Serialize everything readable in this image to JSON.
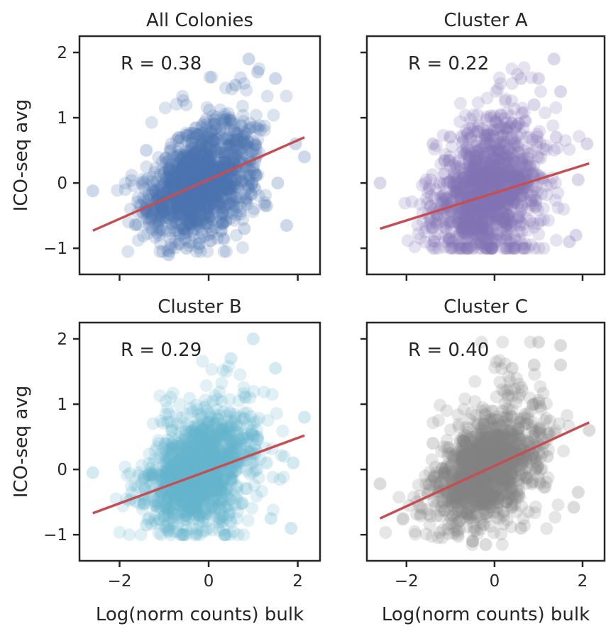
{
  "figure": {
    "colors": {
      "fit_line": "#c44e52",
      "axes": "#262626",
      "background": "#ffffff"
    }
  },
  "chart_data": [
    {
      "type": "scatter",
      "title": "All Colonies",
      "annotation": "R = 0.38",
      "xlabel": "",
      "ylabel": "ICO-seq avg",
      "xlim": [
        -2.9,
        2.5
      ],
      "ylim": [
        -1.4,
        2.25
      ],
      "xticks": [
        -2,
        0,
        2
      ],
      "yticks": [
        -1,
        0,
        1,
        2
      ],
      "xtick_labels": [
        "−2",
        "0",
        "2"
      ],
      "ytick_labels": [
        "−1",
        "0",
        "1",
        "2"
      ],
      "show_x_ticklabels": false,
      "show_y_ticklabels": true,
      "grid": false,
      "color": "#4c72b0",
      "point_alpha": 0.2,
      "n_points": 1300,
      "spread": {
        "x_mean": -0.2,
        "x_sd": 0.62,
        "y_sd": 0.42,
        "y_min": -1.05,
        "y_max": 2.0,
        "x_min": -2.7,
        "x_max": 2.2
      },
      "fit_line": {
        "x": [
          -2.6,
          2.15
        ],
        "y": [
          -0.73,
          0.7
        ]
      },
      "highlight_points": {
        "x": [
          -2.6,
          2.15,
          1.95,
          1.5,
          1.55,
          1.1,
          0.9,
          0.6,
          -1.4,
          -0.9,
          -0.5,
          -0.2,
          0.3,
          0.8,
          1.3,
          1.75
        ],
        "y": [
          -0.12,
          0.4,
          0.6,
          1.6,
          0.0,
          1.7,
          1.9,
          1.5,
          0.5,
          -1.1,
          -1.0,
          -0.85,
          -0.6,
          -0.7,
          -0.35,
          -0.65
        ]
      }
    },
    {
      "type": "scatter",
      "title": "Cluster A",
      "annotation": "R = 0.22",
      "xlabel": "",
      "ylabel": "",
      "xlim": [
        -2.9,
        2.5
      ],
      "ylim": [
        -1.4,
        2.25
      ],
      "xticks": [
        -2,
        0,
        2
      ],
      "yticks": [
        -1,
        0,
        1,
        2
      ],
      "xtick_labels": [
        "−2",
        "0",
        "2"
      ],
      "ytick_labels": [
        "−1",
        "0",
        "1",
        "2"
      ],
      "show_x_ticklabels": false,
      "show_y_ticklabels": false,
      "grid": false,
      "color": "#8172b2",
      "point_alpha": 0.2,
      "n_points": 1300,
      "spread": {
        "x_mean": -0.15,
        "x_sd": 0.62,
        "y_sd": 0.5,
        "y_min": -1.0,
        "y_max": 1.9,
        "x_min": -2.7,
        "x_max": 2.2
      },
      "fit_line": {
        "x": [
          -2.6,
          2.15
        ],
        "y": [
          -0.7,
          0.3
        ]
      },
      "highlight_points": {
        "x": [
          -2.6,
          2.1,
          1.9,
          1.5,
          1.35,
          1.0,
          0.6,
          0.9,
          -1.4,
          -0.8,
          1.7,
          1.85,
          1.4
        ],
        "y": [
          0.0,
          0.6,
          0.05,
          1.4,
          1.9,
          1.6,
          1.6,
          1.2,
          0.6,
          -0.95,
          -0.9,
          -0.8,
          0.7
        ]
      }
    },
    {
      "type": "scatter",
      "title": "Cluster B",
      "annotation": "R = 0.29",
      "xlabel": "Log(norm counts) bulk",
      "ylabel": "ICO-seq avg",
      "xlim": [
        -2.9,
        2.5
      ],
      "ylim": [
        -1.4,
        2.25
      ],
      "xticks": [
        -2,
        0,
        2
      ],
      "yticks": [
        -1,
        0,
        1,
        2
      ],
      "xtick_labels": [
        "−2",
        "0",
        "2"
      ],
      "ytick_labels": [
        "−1",
        "0",
        "1",
        "2"
      ],
      "show_x_ticklabels": true,
      "show_y_ticklabels": true,
      "grid": false,
      "color": "#64b5cd",
      "point_alpha": 0.2,
      "n_points": 1300,
      "spread": {
        "x_mean": -0.2,
        "x_sd": 0.62,
        "y_sd": 0.45,
        "y_min": -1.0,
        "y_max": 2.0,
        "x_min": -2.7,
        "x_max": 2.2
      },
      "fit_line": {
        "x": [
          -2.6,
          2.15
        ],
        "y": [
          -0.67,
          0.52
        ]
      },
      "highlight_points": {
        "x": [
          -2.6,
          2.15,
          1.9,
          1.5,
          1.3,
          1.0,
          0.5,
          1.85,
          -1.4,
          -0.9,
          1.4,
          1.1
        ],
        "y": [
          -0.05,
          0.8,
          0.1,
          1.55,
          0.1,
          2.0,
          1.7,
          -0.9,
          -0.85,
          -0.95,
          -0.75,
          0.5
        ]
      }
    },
    {
      "type": "scatter",
      "title": "Cluster C",
      "annotation": "R = 0.40",
      "xlabel": "Log(norm counts) bulk",
      "ylabel": "",
      "xlim": [
        -2.9,
        2.5
      ],
      "ylim": [
        -1.4,
        2.25
      ],
      "xticks": [
        -2,
        0,
        2
      ],
      "yticks": [
        -1,
        0,
        1,
        2
      ],
      "xtick_labels": [
        "−2",
        "0",
        "2"
      ],
      "ytick_labels": [
        "−1",
        "0",
        "1",
        "2"
      ],
      "show_x_ticklabels": true,
      "show_y_ticklabels": false,
      "grid": false,
      "color": "#808080",
      "point_alpha": 0.2,
      "n_points": 1300,
      "spread": {
        "x_mean": -0.15,
        "x_sd": 0.62,
        "y_sd": 0.42,
        "y_min": -1.15,
        "y_max": 1.95,
        "x_min": -2.7,
        "x_max": 2.2
      },
      "fit_line": {
        "x": [
          -2.6,
          2.15
        ],
        "y": [
          -0.75,
          0.72
        ]
      },
      "highlight_points": {
        "x": [
          -2.6,
          2.15,
          1.9,
          1.5,
          1.5,
          1.0,
          0.9,
          0.4,
          -1.4,
          -0.5,
          -0.2,
          1.2,
          1.8,
          0.6
        ],
        "y": [
          -0.22,
          0.6,
          -0.35,
          1.6,
          1.9,
          1.95,
          1.6,
          1.55,
          0.4,
          -1.1,
          -1.15,
          0.2,
          -0.58,
          -0.9
        ]
      }
    }
  ]
}
